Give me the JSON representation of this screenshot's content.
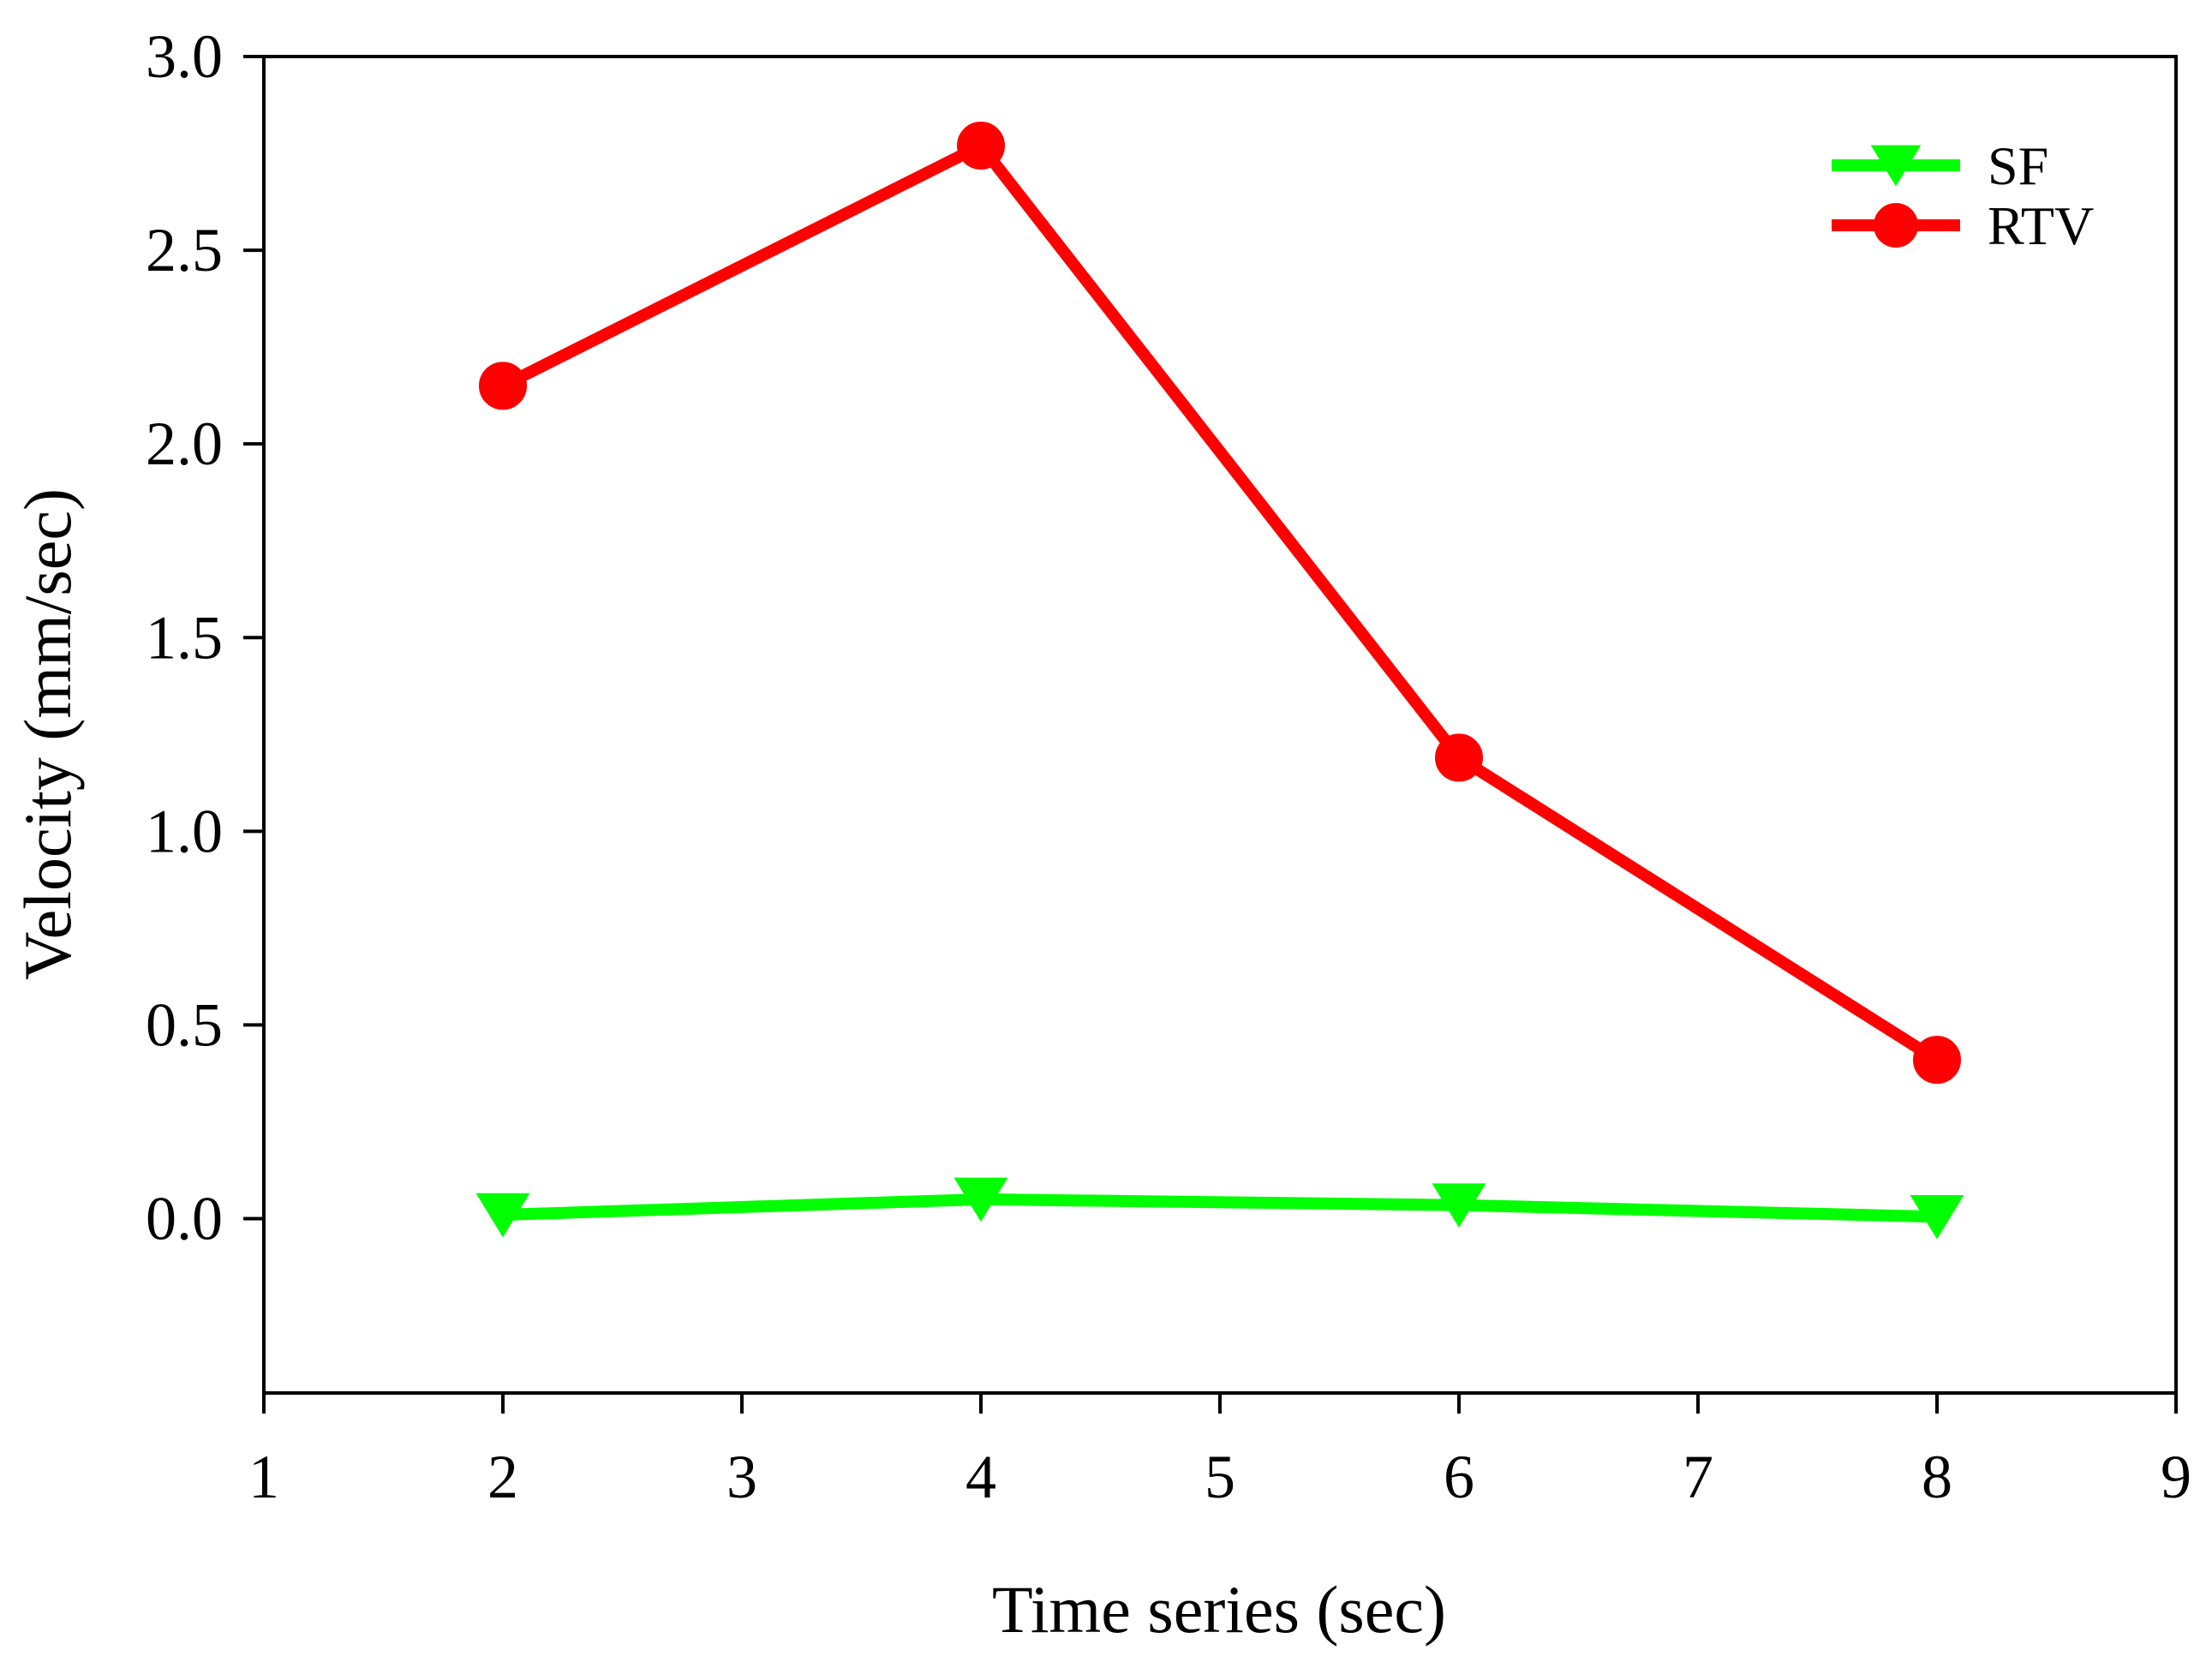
{
  "chart_data": {
    "type": "line",
    "title": "",
    "xlabel": "Time series (sec)",
    "ylabel": "Velocity (mm/sec)",
    "xlim": [
      1,
      9
    ],
    "ylim": [
      -0.45,
      3.0
    ],
    "xticks": [
      1,
      2,
      3,
      4,
      5,
      6,
      7,
      8,
      9
    ],
    "xtick_labels": [
      "1",
      "2",
      "3",
      "4",
      "5",
      "6",
      "7",
      "8",
      "9"
    ],
    "yticks": [
      0.0,
      0.5,
      1.0,
      1.5,
      2.0,
      2.5,
      3.0
    ],
    "ytick_labels": [
      "0.0",
      "0.5",
      "1.0",
      "1.5",
      "2.0",
      "2.5",
      "3.0"
    ],
    "grid": false,
    "legend": "top-right",
    "series": [
      {
        "name": "SF",
        "color": "#00ff00",
        "marker": "triangle-down",
        "x": [
          2,
          4,
          6,
          8
        ],
        "y": [
          0.01,
          0.05,
          0.035,
          0.005
        ]
      },
      {
        "name": "RTV",
        "color": "#ff0000",
        "marker": "circle",
        "x": [
          2,
          4,
          6,
          8
        ],
        "y": [
          2.15,
          2.77,
          1.19,
          0.41
        ]
      }
    ]
  }
}
